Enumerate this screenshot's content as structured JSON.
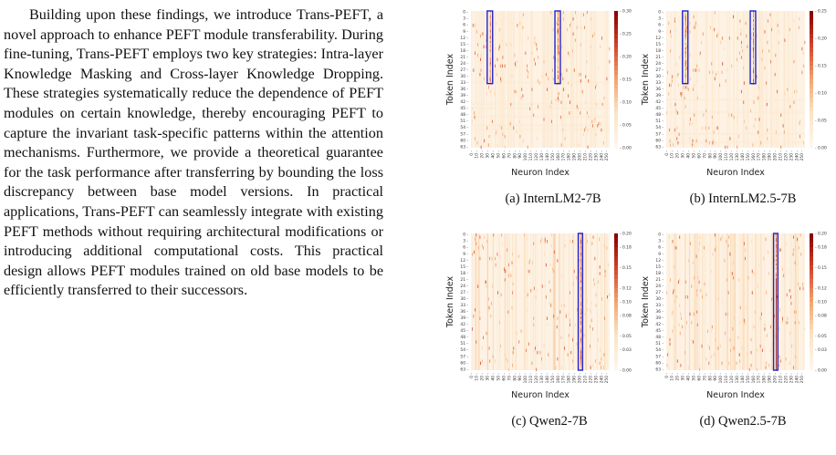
{
  "paragraph": "Building upon these findings, we introduce Trans-PEFT, a novel approach to enhance PEFT module transferability. During fine-tuning, Trans-PEFT employs two key strategies: Intra-layer Knowledge Masking and Cross-layer Knowledge Dropping. These strategies systematically reduce the dependence of PEFT modules on certain knowledge, thereby encouraging PEFT to capture the invariant task-specific patterns within the attention mechanisms. Furthermore, we provide a theoretical guarantee for the task performance after transferring by bounding the loss discrepancy between base model versions. In practical applications, Trans-PEFT can seamlessly integrate with existing PEFT methods without requiring architectural modifications or introducing additional computational costs. This practical design allows PEFT modules trained on old base models to be efficiently transferred to their successors.",
  "colors": {
    "heat_low": "#fdf6ec",
    "heat_high": "#8b0000",
    "box": "#2222cc"
  },
  "chart_data": [
    {
      "type": "heatmap",
      "caption": "(a) InternLM2-7B",
      "xlabel": "Neuron Index",
      "ylabel": "Token Index",
      "x_ticks": [
        "0",
        "10",
        "20",
        "30",
        "40",
        "50",
        "60",
        "70",
        "80",
        "90",
        "100",
        "110",
        "120",
        "130",
        "140",
        "150",
        "160",
        "170",
        "180",
        "190",
        "200",
        "210",
        "220",
        "230",
        "240",
        "250"
      ],
      "y_ticks": [
        "0",
        "3",
        "6",
        "9",
        "12",
        "15",
        "18",
        "21",
        "24",
        "27",
        "30",
        "33",
        "36",
        "39",
        "42",
        "45",
        "48",
        "51",
        "54",
        "57",
        "60",
        "63"
      ],
      "colorbar_ticks": [
        "0.00",
        "0.05",
        "0.10",
        "0.15",
        "0.20",
        "0.25",
        "0.30"
      ],
      "vmax": 0.3,
      "highlight_boxes": [
        {
          "x": [
            30,
            40
          ],
          "y": [
            0,
            33
          ]
        },
        {
          "x": [
            155,
            165
          ],
          "y": [
            0,
            33
          ]
        }
      ]
    },
    {
      "type": "heatmap",
      "caption": "(b) InternLM2.5-7B",
      "xlabel": "Neuron Index",
      "ylabel": "Token Index",
      "x_ticks": [
        "0",
        "10",
        "20",
        "30",
        "40",
        "50",
        "60",
        "70",
        "80",
        "90",
        "100",
        "110",
        "120",
        "130",
        "140",
        "150",
        "160",
        "170",
        "180",
        "190",
        "200",
        "210",
        "220",
        "230",
        "240",
        "250"
      ],
      "y_ticks": [
        "0",
        "3",
        "6",
        "9",
        "12",
        "15",
        "18",
        "21",
        "24",
        "27",
        "30",
        "33",
        "36",
        "39",
        "42",
        "45",
        "48",
        "51",
        "54",
        "57",
        "60",
        "63"
      ],
      "colorbar_ticks": [
        "0.00",
        "0.05",
        "0.10",
        "0.15",
        "0.20",
        "0.25"
      ],
      "vmax": 0.25,
      "highlight_boxes": [
        {
          "x": [
            30,
            40
          ],
          "y": [
            0,
            33
          ]
        },
        {
          "x": [
            155,
            165
          ],
          "y": [
            0,
            33
          ]
        }
      ]
    },
    {
      "type": "heatmap",
      "caption": "(c) Qwen2-7B",
      "xlabel": "Neuron Index",
      "ylabel": "Token Index",
      "x_ticks": [
        "0",
        "10",
        "20",
        "30",
        "40",
        "50",
        "60",
        "70",
        "80",
        "90",
        "100",
        "110",
        "120",
        "130",
        "140",
        "150",
        "160",
        "170",
        "180",
        "190",
        "200",
        "210",
        "220",
        "230",
        "240",
        "250"
      ],
      "y_ticks": [
        "0",
        "3",
        "6",
        "9",
        "12",
        "15",
        "18",
        "21",
        "24",
        "27",
        "30",
        "33",
        "36",
        "39",
        "42",
        "45",
        "48",
        "51",
        "54",
        "57",
        "60",
        "63"
      ],
      "colorbar_ticks": [
        "0.00",
        "0.03",
        "0.05",
        "0.08",
        "0.10",
        "0.12",
        "0.15",
        "0.18",
        "0.20"
      ],
      "vmax": 0.2,
      "highlight_boxes": [
        {
          "x": [
            198,
            206
          ],
          "y": [
            0,
            63
          ]
        }
      ]
    },
    {
      "type": "heatmap",
      "caption": "(d) Qwen2.5-7B",
      "xlabel": "Neuron Index",
      "ylabel": "Token Index",
      "x_ticks": [
        "0",
        "10",
        "20",
        "30",
        "40",
        "50",
        "60",
        "70",
        "80",
        "90",
        "100",
        "110",
        "120",
        "130",
        "140",
        "150",
        "160",
        "170",
        "180",
        "190",
        "200",
        "210",
        "220",
        "230",
        "240",
        "250"
      ],
      "y_ticks": [
        "0",
        "3",
        "6",
        "9",
        "12",
        "15",
        "18",
        "21",
        "24",
        "27",
        "30",
        "33",
        "36",
        "39",
        "42",
        "45",
        "48",
        "51",
        "54",
        "57",
        "60",
        "63"
      ],
      "colorbar_ticks": [
        "0.00",
        "0.03",
        "0.05",
        "0.08",
        "0.10",
        "0.12",
        "0.15",
        "0.18",
        "0.20"
      ],
      "vmax": 0.2,
      "highlight_boxes": [
        {
          "x": [
            198,
            206
          ],
          "y": [
            0,
            63
          ]
        }
      ]
    }
  ]
}
